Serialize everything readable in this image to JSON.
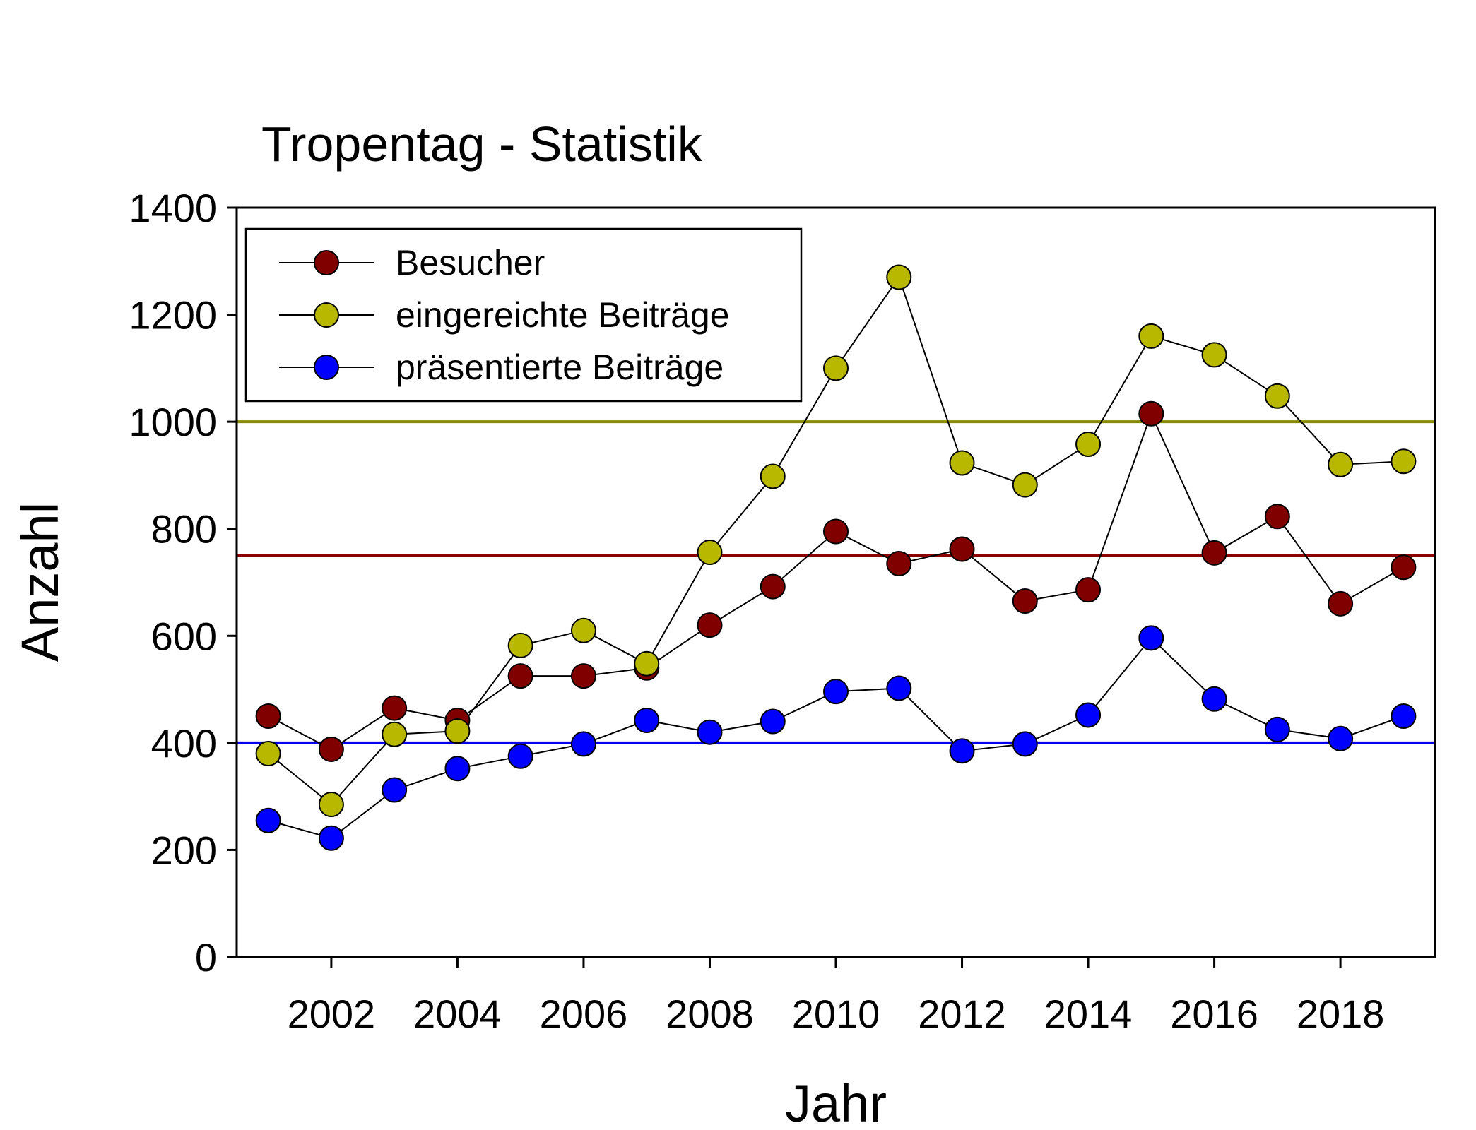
{
  "chart_data": {
    "type": "line",
    "title": "Tropentag - Statistik",
    "xlabel": "Jahr",
    "ylabel": "Anzahl",
    "xlim": [
      2000.5,
      2019.5
    ],
    "ylim": [
      0,
      1400
    ],
    "x_ticks": [
      2002,
      2004,
      2006,
      2008,
      2010,
      2012,
      2014,
      2016,
      2018
    ],
    "x_tick_labels": [
      "2002",
      "2004",
      "2006",
      "2008",
      "2010",
      "2012",
      "2014",
      "2016",
      "2018"
    ],
    "y_ticks": [
      0,
      200,
      400,
      600,
      800,
      1000,
      1200,
      1400
    ],
    "y_tick_labels": [
      "0",
      "200",
      "400",
      "600",
      "800",
      "1000",
      "1200",
      "1400"
    ],
    "grid": false,
    "legend_position": "top-left",
    "x": [
      2001,
      2002,
      2003,
      2004,
      2005,
      2006,
      2007,
      2008,
      2009,
      2010,
      2011,
      2012,
      2013,
      2014,
      2015,
      2016,
      2017,
      2018,
      2019
    ],
    "series": [
      {
        "name": "Besucher",
        "color": "#800000",
        "values": [
          450,
          388,
          465,
          442,
          525,
          525,
          540,
          620,
          692,
          795,
          735,
          762,
          665,
          686,
          1015,
          755,
          823,
          660,
          728
        ]
      },
      {
        "name": "eingereichte Beiträge",
        "color": "#b8b800",
        "values": [
          380,
          285,
          416,
          422,
          582,
          610,
          548,
          756,
          898,
          1100,
          1270,
          923,
          882,
          958,
          1160,
          1125,
          1048,
          920,
          926
        ]
      },
      {
        "name": "präsentierte Beiträge",
        "color": "#0000ff",
        "values": [
          255,
          222,
          312,
          352,
          375,
          398,
          442,
          420,
          440,
          496,
          502,
          385,
          398,
          452,
          596,
          482,
          425,
          408,
          450
        ]
      }
    ],
    "reference_lines": [
      {
        "y": 1000,
        "color": "#8c8c00"
      },
      {
        "y": 750,
        "color": "#8b0000"
      },
      {
        "y": 400,
        "color": "#0000ee"
      }
    ]
  }
}
